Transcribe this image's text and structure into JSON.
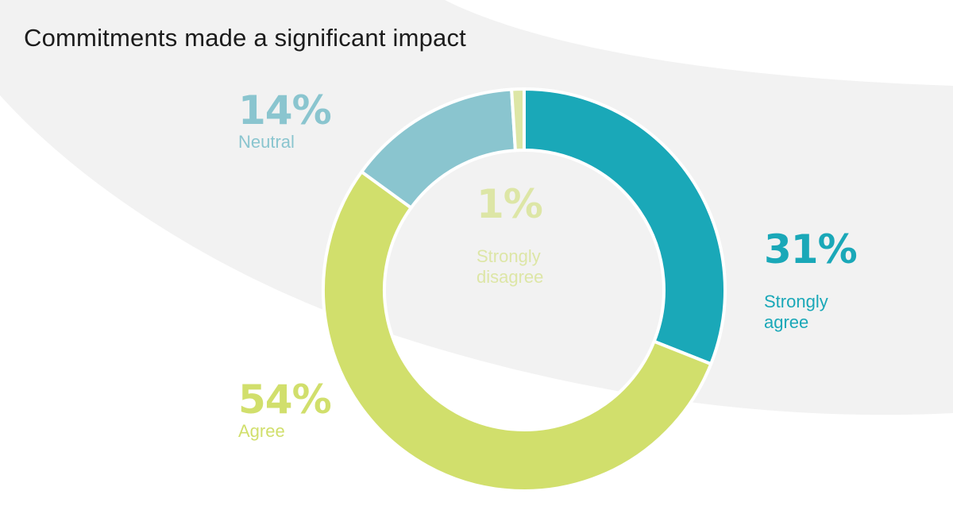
{
  "chart_data": {
    "type": "pie",
    "title": "Commitments made a significant impact",
    "categories": [
      "Strongly agree",
      "Agree",
      "Neutral",
      "Strongly disagree"
    ],
    "values": [
      31,
      54,
      14,
      1
    ],
    "value_labels": [
      "31%",
      "54%",
      "14%",
      "1%"
    ],
    "label_lines": [
      [
        "Strongly",
        "agree"
      ],
      [
        "Agree"
      ],
      [
        "Neutral"
      ],
      [
        "Strongly",
        "disagree"
      ]
    ],
    "colors": [
      "#1aa8b8",
      "#d1df6c",
      "#8ac5cf",
      "#dde6a6"
    ],
    "legend": "none"
  }
}
